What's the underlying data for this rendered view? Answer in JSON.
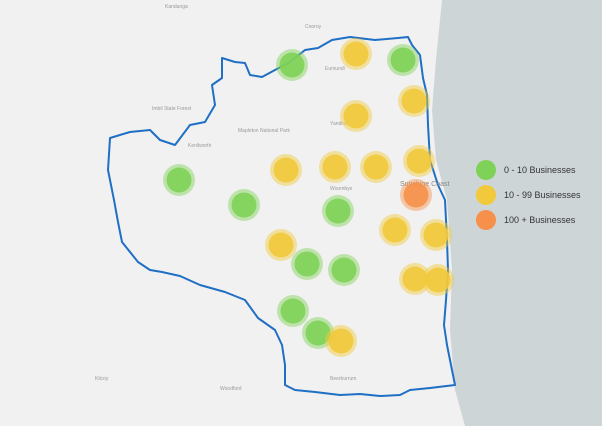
{
  "colors": {
    "land": "#f1f1f1",
    "sea": "#cdd5d7",
    "boundary": "#1f6fc5",
    "green": "#7ed257",
    "yellow": "#f2c93a",
    "orange": "#f6904a"
  },
  "legend": [
    {
      "label": "0 - 10 Businesses",
      "color": "#7ed257"
    },
    {
      "label": "10 - 99 Businesses",
      "color": "#f2c93a"
    },
    {
      "label": "100 + Businesses",
      "color": "#f6904a"
    }
  ],
  "places": {
    "kandanga": "Kandanga",
    "cooroy": "Cooroy",
    "eumundi": "Eumundi",
    "yandina": "Yandina",
    "kenilworth": "Kenilworth",
    "woombye": "Woombye",
    "sunshine_coast": "Sunshine Coast",
    "beerburrum": "Beerburrum",
    "woodford": "Woodford",
    "kilcoy": "Kilcoy",
    "mapleton_np": "Mapleton National Park",
    "imbil_sf": "Imbil State Forest"
  },
  "markers": [
    {
      "category": "0 - 10 Businesses"
    },
    {
      "category": "0 - 10 Businesses"
    },
    {
      "category": "0 - 10 Businesses"
    },
    {
      "category": "0 - 10 Businesses"
    },
    {
      "category": "0 - 10 Businesses"
    },
    {
      "category": "0 - 10 Businesses"
    },
    {
      "category": "0 - 10 Businesses"
    },
    {
      "category": "0 - 10 Businesses"
    },
    {
      "category": "0 - 10 Businesses"
    },
    {
      "category": "10 - 99 Businesses"
    },
    {
      "category": "10 - 99 Businesses"
    },
    {
      "category": "10 - 99 Businesses"
    },
    {
      "category": "10 - 99 Businesses"
    },
    {
      "category": "10 - 99 Businesses"
    },
    {
      "category": "10 - 99 Businesses"
    },
    {
      "category": "10 - 99 Businesses"
    },
    {
      "category": "10 - 99 Businesses"
    },
    {
      "category": "10 - 99 Businesses"
    },
    {
      "category": "10 - 99 Businesses"
    },
    {
      "category": "10 - 99 Businesses"
    },
    {
      "category": "10 - 99 Businesses"
    },
    {
      "category": "10 - 99 Businesses"
    },
    {
      "category": "100 + Businesses"
    }
  ]
}
